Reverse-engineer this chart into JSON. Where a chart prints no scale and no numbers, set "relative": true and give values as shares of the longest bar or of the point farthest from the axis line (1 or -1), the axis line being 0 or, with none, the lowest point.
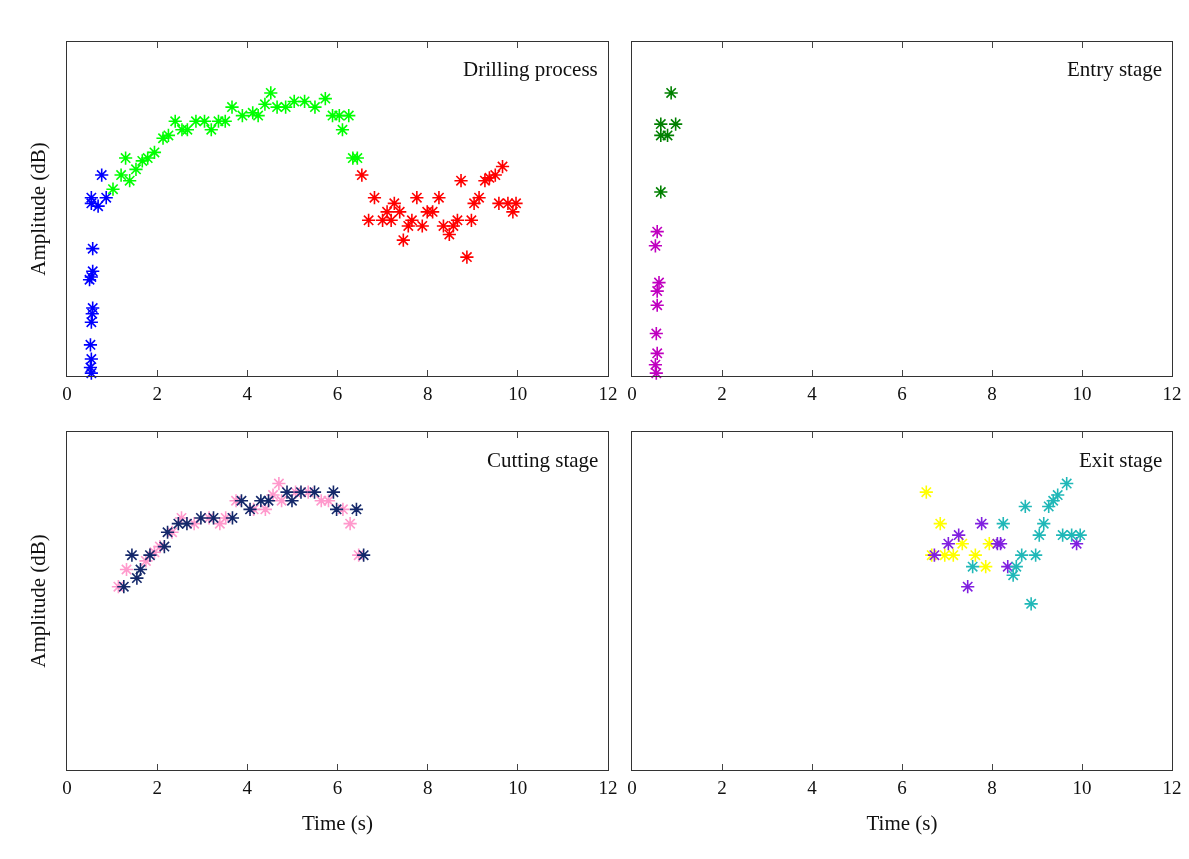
{
  "chart_data": [
    {
      "type": "scatter",
      "title": "Drilling process",
      "ylabel": "Amplitude (dB)",
      "relative": true,
      "xlim": [
        0,
        12
      ],
      "xticks": [
        0,
        2,
        4,
        6,
        8,
        10,
        12
      ],
      "tick_labels": "x",
      "marker": "cross",
      "series": [
        {
          "color": "#0000ff",
          "x": [
            0.54,
            0.54,
            0.69,
            0.87,
            0.77,
            0.57,
            0.57,
            0.54,
            0.5,
            0.57,
            0.56,
            0.54,
            0.52,
            0.54,
            0.52,
            0.54
          ],
          "values": [
            0.63,
            0.61,
            0.6,
            0.63,
            0.71,
            0.45,
            0.37,
            0.35,
            0.34,
            0.24,
            0.22,
            0.19,
            0.11,
            0.06,
            0.03,
            0.01
          ]
        },
        {
          "color": "#00ff00",
          "x": [
            1.02,
            1.2,
            1.3,
            1.39,
            1.53,
            1.67,
            1.79,
            1.94,
            2.13,
            2.25,
            2.4,
            2.55,
            2.67,
            2.86,
            3.05,
            3.2,
            3.36,
            3.51,
            3.66,
            3.89,
            4.12,
            4.24,
            4.39,
            4.52,
            4.66,
            4.85,
            5.04,
            5.27,
            5.5,
            5.73,
            5.89,
            6.04,
            6.25,
            6.11,
            6.34,
            6.44
          ],
          "values": [
            0.66,
            0.71,
            0.77,
            0.69,
            0.73,
            0.76,
            0.77,
            0.79,
            0.84,
            0.85,
            0.9,
            0.87,
            0.87,
            0.9,
            0.9,
            0.87,
            0.9,
            0.9,
            0.95,
            0.92,
            0.93,
            0.92,
            0.96,
            1,
            0.95,
            0.95,
            0.97,
            0.97,
            0.95,
            0.98,
            0.92,
            0.92,
            0.92,
            0.87,
            0.77,
            0.77
          ]
        },
        {
          "color": "#ff0000",
          "x": [
            6.54,
            6.69,
            6.82,
            7.0,
            7.1,
            7.19,
            7.26,
            7.38,
            7.46,
            7.57,
            7.65,
            7.76,
            7.88,
            7.99,
            8.11,
            8.25,
            8.35,
            8.48,
            8.57,
            8.66,
            8.74,
            8.87,
            8.97,
            9.03,
            9.14,
            9.27,
            9.37,
            9.5,
            9.66,
            9.58,
            9.78,
            9.89,
            9.96
          ],
          "values": [
            0.71,
            0.55,
            0.63,
            0.55,
            0.58,
            0.55,
            0.61,
            0.58,
            0.48,
            0.53,
            0.55,
            0.63,
            0.53,
            0.58,
            0.58,
            0.63,
            0.53,
            0.5,
            0.53,
            0.55,
            0.69,
            0.42,
            0.55,
            0.61,
            0.63,
            0.69,
            0.7,
            0.71,
            0.74,
            0.61,
            0.61,
            0.58,
            0.61
          ]
        }
      ]
    },
    {
      "type": "scatter",
      "title": "Entry stage",
      "relative": true,
      "xlim": [
        0,
        12
      ],
      "xticks": [
        0,
        2,
        4,
        6,
        8,
        10,
        12
      ],
      "tick_labels": "x",
      "marker": "cross",
      "series": [
        {
          "color": "#008000",
          "x": [
            0.87,
            0.64,
            0.64,
            0.79,
            0.97,
            0.64
          ],
          "values": [
            1,
            0.89,
            0.85,
            0.85,
            0.89,
            0.65
          ]
        },
        {
          "color": "#c000c0",
          "x": [
            0.56,
            0.52,
            0.6,
            0.56,
            0.56,
            0.54,
            0.56,
            0.52,
            0.54
          ],
          "values": [
            0.51,
            0.46,
            0.33,
            0.3,
            0.25,
            0.15,
            0.08,
            0.04,
            0.01
          ]
        }
      ]
    },
    {
      "type": "scatter",
      "title": "Cutting stage",
      "ylabel": "Amplitude (dB)",
      "xlabel": "Time (s)",
      "relative": true,
      "xlim": [
        0,
        12
      ],
      "xticks": [
        0,
        2,
        4,
        6,
        8,
        10,
        12
      ],
      "tick_labels": "x",
      "marker": "cross",
      "series": [
        {
          "color": "#ff99cc",
          "x": [
            1.14,
            1.32,
            1.75,
            1.94,
            2.06,
            2.33,
            2.54,
            2.82,
            3.15,
            3.39,
            3.52,
            3.75,
            4.14,
            4.4,
            4.57,
            4.7,
            4.76,
            5.07,
            5.35,
            5.64,
            5.8,
            6.12,
            6.28,
            6.47
          ],
          "values": [
            0.64,
            0.7,
            0.73,
            0.76,
            0.78,
            0.83,
            0.88,
            0.86,
            0.88,
            0.86,
            0.88,
            0.94,
            0.91,
            0.91,
            0.96,
            1,
            0.94,
            0.97,
            0.97,
            0.94,
            0.94,
            0.91,
            0.86,
            0.75
          ]
        },
        {
          "color": "#14286a",
          "x": [
            1.26,
            1.44,
            1.55,
            1.63,
            1.84,
            2.16,
            2.23,
            2.47,
            2.66,
            2.97,
            3.25,
            3.67,
            3.87,
            4.06,
            4.3,
            4.47,
            4.88,
            4.99,
            5.19,
            5.49,
            5.91,
            5.98,
            6.42,
            6.58
          ],
          "values": [
            0.64,
            0.75,
            0.67,
            0.7,
            0.75,
            0.78,
            0.83,
            0.86,
            0.86,
            0.88,
            0.88,
            0.88,
            0.94,
            0.91,
            0.94,
            0.94,
            0.97,
            0.94,
            0.97,
            0.97,
            0.97,
            0.91,
            0.91,
            0.75
          ]
        }
      ]
    },
    {
      "type": "scatter",
      "title": "Exit stage",
      "xlabel": "Time (s)",
      "relative": true,
      "xlim": [
        0,
        12
      ],
      "xticks": [
        0,
        2,
        4,
        6,
        8,
        10,
        12
      ],
      "tick_labels": "x",
      "marker": "cross",
      "series": [
        {
          "color": "#ffff00",
          "x": [
            6.54,
            6.85,
            6.66,
            6.95,
            7.14,
            7.34,
            7.63,
            7.86,
            7.94
          ],
          "values": [
            0.97,
            0.86,
            0.75,
            0.75,
            0.75,
            0.79,
            0.75,
            0.71,
            0.79
          ]
        },
        {
          "color": "#8020e0",
          "x": [
            6.72,
            7.03,
            7.26,
            7.46,
            7.77,
            8.12,
            8.19,
            8.35,
            9.88
          ],
          "values": [
            0.75,
            0.79,
            0.82,
            0.64,
            0.86,
            0.79,
            0.79,
            0.71,
            0.79
          ]
        },
        {
          "color": "#20b8b8",
          "x": [
            7.57,
            8.25,
            8.47,
            8.54,
            8.66,
            8.74,
            8.87,
            8.97,
            9.05,
            9.15,
            9.26,
            9.36,
            9.46,
            9.66,
            9.57,
            9.77,
            9.96
          ],
          "values": [
            0.71,
            0.86,
            0.68,
            0.71,
            0.75,
            0.92,
            0.58,
            0.75,
            0.82,
            0.86,
            0.92,
            0.94,
            0.96,
            1,
            0.82,
            0.82,
            0.82
          ]
        }
      ]
    }
  ]
}
